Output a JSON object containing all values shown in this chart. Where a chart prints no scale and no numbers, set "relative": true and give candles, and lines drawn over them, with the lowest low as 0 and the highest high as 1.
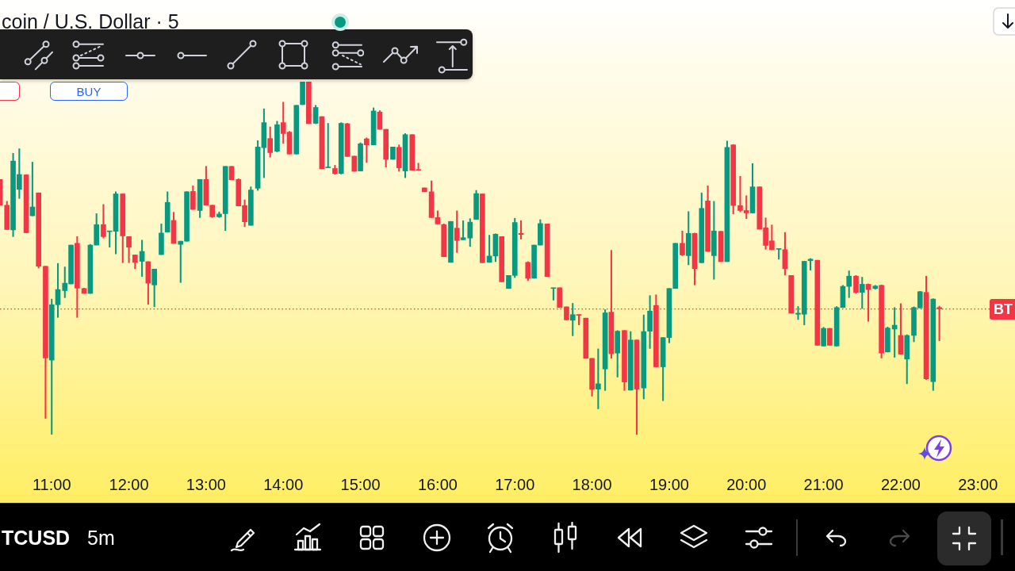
{
  "chart_data": {
    "type": "candlestick",
    "title": "coin / U.S. Dollar · 5",
    "relative": true,
    "annotations": [
      "BUY",
      "TCUSD",
      "5m"
    ],
    "xlim": [
      10.33,
      23.48
    ],
    "xticks": [
      {
        "value": 11,
        "label": "11:00"
      },
      {
        "value": 12,
        "label": "12:00"
      },
      {
        "value": 13,
        "label": "13:00"
      },
      {
        "value": 14,
        "label": "14:00"
      },
      {
        "value": 15,
        "label": "15:00"
      },
      {
        "value": 16,
        "label": "16:00"
      },
      {
        "value": 17,
        "label": "17:00"
      },
      {
        "value": 18,
        "label": "18:00"
      },
      {
        "value": 19,
        "label": "19:00"
      },
      {
        "value": 20,
        "label": "20:00"
      },
      {
        "value": 21,
        "label": "21:00"
      },
      {
        "value": 22,
        "label": "22:00"
      },
      {
        "value": 23,
        "label": "23:00"
      }
    ],
    "ref_lines": [
      {
        "axis": "y",
        "value": 0.356,
        "label": "BT",
        "color": "#f23645",
        "line_style": "dotted"
      }
    ],
    "x": [
      10.33,
      10.42,
      10.5,
      10.58,
      10.67,
      10.75,
      10.83,
      10.92,
      11,
      11.08,
      11.17,
      11.25,
      11.33,
      11.42,
      11.5,
      11.58,
      11.67,
      11.75,
      11.83,
      11.92,
      12,
      12.08,
      12.17,
      12.25,
      12.33,
      12.42,
      12.5,
      12.58,
      12.67,
      12.75,
      12.83,
      12.92,
      13,
      13.08,
      13.17,
      13.25,
      13.33,
      13.42,
      13.5,
      13.58,
      13.67,
      13.75,
      13.83,
      13.92,
      14,
      14.08,
      14.17,
      14.25,
      14.33,
      14.42,
      14.5,
      14.58,
      14.67,
      14.75,
      14.83,
      14.92,
      15,
      15.08,
      15.17,
      15.25,
      15.33,
      15.42,
      15.5,
      15.58,
      15.67,
      15.75,
      15.83,
      15.92,
      16,
      16.08,
      16.17,
      16.25,
      16.33,
      16.42,
      16.5,
      16.58,
      16.67,
      16.75,
      16.83,
      16.92,
      17,
      17.08,
      17.17,
      17.25,
      17.33,
      17.42,
      17.5,
      17.58,
      17.67,
      17.75,
      17.83,
      17.92,
      18,
      18.08,
      18.17,
      18.25,
      18.33,
      18.42,
      18.5,
      18.58,
      18.67,
      18.75,
      18.83,
      18.92,
      19,
      19.08,
      19.17,
      19.25,
      19.33,
      19.42,
      19.5,
      19.58,
      19.67,
      19.75,
      19.83,
      19.92,
      20,
      20.08,
      20.17,
      20.25,
      20.33,
      20.42,
      20.5,
      20.58,
      20.67,
      20.75,
      20.83,
      20.92,
      21,
      21.08,
      21.17,
      21.25,
      21.33,
      21.42,
      21.5,
      21.58,
      21.67,
      21.75,
      21.83,
      21.92,
      22,
      22.08,
      22.17,
      22.25,
      22.33,
      22.42,
      22.5
    ],
    "ohlc": [
      [
        0.723,
        0.723,
        0.65,
        0.65
      ],
      [
        0.65,
        0.661,
        0.581,
        0.581
      ],
      [
        0.58,
        0.797,
        0.561,
        0.775
      ],
      [
        0.695,
        0.81,
        0.669,
        0.737
      ],
      [
        0.736,
        0.736,
        0.572,
        0.572
      ],
      [
        0.62,
        0.772,
        0.62,
        0.645
      ],
      [
        0.685,
        0.685,
        0.472,
        0.477
      ],
      [
        0.477,
        0.477,
        0.046,
        0.217
      ],
      [
        0.211,
        0.384,
        0,
        0.368
      ],
      [
        0.368,
        0.485,
        0.332,
        0.411
      ],
      [
        0.408,
        0.475,
        0.388,
        0.429
      ],
      [
        0.427,
        0.537,
        0.427,
        0.537
      ],
      [
        0.542,
        0.561,
        0.332,
        0.415
      ],
      [
        0.414,
        0.415,
        0.4,
        0.4
      ],
      [
        0.4,
        0.539,
        0.4,
        0.537
      ],
      [
        0.537,
        0.626,
        0.537,
        0.595
      ],
      [
        0.595,
        0.652,
        0.557,
        0.561
      ],
      [
        0.575,
        0.577,
        0.531,
        0.577
      ],
      [
        0.576,
        0.688,
        0.512,
        0.682
      ],
      [
        0.682,
        0.682,
        0.487,
        0.563
      ],
      [
        0.561,
        0.561,
        0.487,
        0.531
      ],
      [
        0.509,
        0.509,
        0.47,
        0.488
      ],
      [
        0.491,
        0.551,
        0.448,
        0.519
      ],
      [
        0.49,
        0.49,
        0.369,
        0.429
      ],
      [
        0.424,
        0.469,
        0.362,
        0.469
      ],
      [
        0.51,
        0.597,
        0.51,
        0.571
      ],
      [
        0.574,
        0.688,
        0.574,
        0.658
      ],
      [
        0.607,
        0.63,
        0.542,
        0.542
      ],
      [
        0.539,
        0.548,
        0.431,
        0.548
      ],
      [
        0.548,
        0.689,
        0.548,
        0.688
      ],
      [
        0.689,
        0.705,
        0.638,
        0.638
      ],
      [
        0.635,
        0.723,
        0.615,
        0.723
      ],
      [
        0.723,
        0.76,
        0.65,
        0.65
      ],
      [
        0.65,
        0.65,
        0.615,
        0.617
      ],
      [
        0.617,
        0.631,
        0.615,
        0.625
      ],
      [
        0.626,
        0.76,
        0.578,
        0.76
      ],
      [
        0.76,
        0.76,
        0.722,
        0.722
      ],
      [
        0.723,
        0.725,
        0.648,
        0.648
      ],
      [
        0.649,
        0.665,
        0.589,
        0.603
      ],
      [
        0.593,
        0.702,
        0.593,
        0.693
      ],
      [
        0.698,
        0.833,
        0.692,
        0.815
      ],
      [
        0.813,
        0.923,
        0.728,
        0.884
      ],
      [
        0.839,
        0.872,
        0.786,
        0.799
      ],
      [
        0.803,
        0.888,
        0.801,
        0.878
      ],
      [
        0.884,
        0.942,
        0.825,
        0.853
      ],
      [
        0.857,
        0.859,
        0.795,
        0.795
      ],
      [
        0.795,
        0.933,
        0.795,
        0.933
      ],
      [
        0.935,
        1,
        0.935,
        1
      ],
      [
        1,
        1,
        0.881,
        0.881
      ],
      [
        0.882,
        0.933,
        0.881,
        0.927
      ],
      [
        0.901,
        0.901,
        0.753,
        0.753
      ],
      [
        0.756,
        0.882,
        0.756,
        0.757
      ],
      [
        0.754,
        0.763,
        0.737,
        0.74
      ],
      [
        0.74,
        0.884,
        0.738,
        0.882
      ],
      [
        0.881,
        0.882,
        0.788,
        0.788
      ],
      [
        0.789,
        0.789,
        0.746,
        0.746
      ],
      [
        0.747,
        0.827,
        0.747,
        0.824
      ],
      [
        0.838,
        0.841,
        0.771,
        0.821
      ],
      [
        0.821,
        0.926,
        0.821,
        0.917
      ],
      [
        0.914,
        0.918,
        0.865,
        0.865
      ],
      [
        0.865,
        0.865,
        0.758,
        0.78
      ],
      [
        0.78,
        0.815,
        0.78,
        0.815
      ],
      [
        0.814,
        0.821,
        0.746,
        0.756
      ],
      [
        0.747,
        0.853,
        0.728,
        0.85
      ],
      [
        0.85,
        0.85,
        0.749,
        0.749
      ],
      [
        0.75,
        0.769,
        0.749,
        0.749
      ],
      [
        0.699,
        0.699,
        0.688,
        0.688
      ],
      [
        0.688,
        0.719,
        0.615,
        0.615
      ],
      [
        0.615,
        0.634,
        0.597,
        0.597
      ],
      [
        0.595,
        0.597,
        0.504,
        0.504
      ],
      [
        0.488,
        0.604,
        0.488,
        0.604
      ],
      [
        0.585,
        0.634,
        0.516,
        0.55
      ],
      [
        0.552,
        0.606,
        0.552,
        0.558
      ],
      [
        0.557,
        0.612,
        0.533,
        0.602
      ],
      [
        0.61,
        0.692,
        0.61,
        0.683
      ],
      [
        0.682,
        0.682,
        0.487,
        0.487
      ],
      [
        0.488,
        0.565,
        0.488,
        0.506
      ],
      [
        0.506,
        0.569,
        0.49,
        0.568
      ],
      [
        0.561,
        0.561,
        0.433,
        0.433
      ],
      [
        0.414,
        0.451,
        0.414,
        0.451
      ],
      [
        0.451,
        0.613,
        0.445,
        0.601
      ],
      [
        0.57,
        0.606,
        0.554,
        0.567
      ],
      [
        0.488,
        0.49,
        0.436,
        0.443
      ],
      [
        0.443,
        0.537,
        0.443,
        0.537
      ],
      [
        0.537,
        0.609,
        0.537,
        0.598
      ],
      [
        0.597,
        0.597,
        0.448,
        0.448
      ],
      [
        0.414,
        0.415,
        0.381,
        0.415
      ],
      [
        0.416,
        0.416,
        0.36,
        0.36
      ],
      [
        0.362,
        0.362,
        0.325,
        0.325
      ],
      [
        0.324,
        0.372,
        0.28,
        0.34
      ],
      [
        0.34,
        0.34,
        0.311,
        0.338
      ],
      [
        0.33,
        0.33,
        0.216,
        0.216
      ],
      [
        0.216,
        0.216,
        0.109,
        0.128
      ],
      [
        0.129,
        0.243,
        0.073,
        0.144
      ],
      [
        0.186,
        0.354,
        0.125,
        0.345
      ],
      [
        0.347,
        0.522,
        0.216,
        0.229
      ],
      [
        0.231,
        0.295,
        0.163,
        0.293
      ],
      [
        0.295,
        0.295,
        0.125,
        0.149
      ],
      [
        0.126,
        0.292,
        0.126,
        0.268
      ],
      [
        0.268,
        0.268,
        0,
        0.129
      ],
      [
        0.132,
        0.339,
        0.101,
        0.292
      ],
      [
        0.293,
        0.394,
        0.244,
        0.35
      ],
      [
        0.366,
        0.396,
        0.192,
        0.192
      ],
      [
        0.192,
        0.275,
        0.096,
        0.275
      ],
      [
        0.275,
        0.414,
        0.26,
        0.414
      ],
      [
        0.414,
        0.542,
        0.414,
        0.542
      ],
      [
        0.542,
        0.577,
        0.507,
        0.509
      ],
      [
        0.507,
        0.632,
        0.481,
        0.57
      ],
      [
        0.57,
        0.571,
        0.424,
        0.47
      ],
      [
        0.487,
        0.685,
        0.487,
        0.641
      ],
      [
        0.662,
        0.705,
        0.519,
        0.519
      ],
      [
        0.507,
        0.661,
        0.44,
        0.577
      ],
      [
        0.576,
        0.576,
        0.49,
        0.49
      ],
      [
        0.49,
        0.832,
        0.49,
        0.814
      ],
      [
        0.821,
        0.821,
        0.625,
        0.649
      ],
      [
        0.649,
        0.732,
        0.631,
        0.635
      ],
      [
        0.635,
        0.677,
        0.612,
        0.628
      ],
      [
        0.628,
        0.768,
        0.628,
        0.702
      ],
      [
        0.702,
        0.702,
        0.582,
        0.582
      ],
      [
        0.586,
        0.614,
        0.525,
        0.536
      ],
      [
        0.549,
        0.594,
        0.524,
        0.524
      ],
      [
        0.525,
        0.527,
        0.497,
        0.527
      ],
      [
        0.524,
        0.573,
        0.452,
        0.47
      ],
      [
        0.451,
        0.451,
        0.344,
        0.344
      ],
      [
        0.341,
        0.363,
        0.326,
        0.344
      ],
      [
        0.341,
        0.491,
        0.311,
        0.491
      ],
      [
        0.493,
        0.499,
        0.466,
        0.497
      ],
      [
        0.494,
        0.494,
        0.253,
        0.253
      ],
      [
        0.251,
        0.304,
        0.251,
        0.301
      ],
      [
        0.301,
        0.301,
        0.253,
        0.253
      ],
      [
        0.251,
        0.363,
        0.251,
        0.36
      ],
      [
        0.36,
        0.423,
        0.36,
        0.42
      ],
      [
        0.42,
        0.464,
        0.388,
        0.449
      ],
      [
        0.449,
        0.451,
        0.4,
        0.403
      ],
      [
        0.403,
        0.446,
        0.357,
        0.426
      ],
      [
        0.426,
        0.427,
        0.321,
        0.411
      ],
      [
        0.414,
        0.423,
        0.412,
        0.421
      ],
      [
        0.423,
        0.424,
        0.217,
        0.231
      ],
      [
        0.234,
        0.305,
        0.234,
        0.302
      ],
      [
        0.299,
        0.36,
        0.219,
        0.31
      ],
      [
        0.281,
        0.371,
        0.228,
        0.228
      ],
      [
        0.214,
        0.283,
        0.144,
        0.281
      ],
      [
        0.281,
        0.362,
        0.263,
        0.36
      ],
      [
        0.359,
        0.406,
        0.359,
        0.405
      ],
      [
        0.403,
        0.449,
        0.156,
        0.158
      ],
      [
        0.15,
        0.385,
        0.125,
        0.384
      ],
      [
        0.36,
        0.364,
        0.266,
        0.356
      ]
    ],
    "colors": [
      "#f23645",
      "#f23645",
      "#089981",
      "#089981",
      "#f23645",
      "#089981",
      "#f23645",
      "#f23645",
      "#089981",
      "#089981",
      "#089981",
      "#089981",
      "#f23645",
      "#f23645",
      "#089981",
      "#089981",
      "#f23645",
      "#089981",
      "#089981",
      "#f23645",
      "#f23645",
      "#f23645",
      "#089981",
      "#f23645",
      "#089981",
      "#089981",
      "#089981",
      "#f23645",
      "#089981",
      "#089981",
      "#f23645",
      "#089981",
      "#f23645",
      "#f23645",
      "#089981",
      "#089981",
      "#f23645",
      "#f23645",
      "#f23645",
      "#089981",
      "#089981",
      "#089981",
      "#f23645",
      "#089981",
      "#f23645",
      "#f23645",
      "#089981",
      "#089981",
      "#f23645",
      "#089981",
      "#f23645",
      "#089981",
      "#f23645",
      "#089981",
      "#f23645",
      "#f23645",
      "#089981",
      "#f23645",
      "#089981",
      "#f23645",
      "#f23645",
      "#089981",
      "#f23645",
      "#089981",
      "#f23645",
      "#f23645",
      "#f23645",
      "#f23645",
      "#f23645",
      "#f23645",
      "#089981",
      "#f23645",
      "#089981",
      "#089981",
      "#089981",
      "#f23645",
      "#089981",
      "#089981",
      "#f23645",
      "#089981",
      "#089981",
      "#f23645",
      "#f23645",
      "#089981",
      "#089981",
      "#f23645",
      "#089981",
      "#f23645",
      "#f23645",
      "#089981",
      "#f23645",
      "#f23645",
      "#f23645",
      "#089981",
      "#089981",
      "#f23645",
      "#089981",
      "#f23645",
      "#089981",
      "#f23645",
      "#089981",
      "#089981",
      "#f23645",
      "#089981",
      "#089981",
      "#089981",
      "#f23645",
      "#089981",
      "#f23645",
      "#089981",
      "#f23645",
      "#089981",
      "#f23645",
      "#089981",
      "#f23645",
      "#f23645",
      "#f23645",
      "#089981",
      "#f23645",
      "#f23645",
      "#f23645",
      "#089981",
      "#f23645",
      "#f23645",
      "#089981",
      "#089981",
      "#089981",
      "#f23645",
      "#089981",
      "#f23645",
      "#089981",
      "#089981",
      "#089981",
      "#f23645",
      "#089981",
      "#f23645",
      "#089981",
      "#f23645",
      "#089981",
      "#089981",
      "#f23645",
      "#089981",
      "#089981",
      "#089981",
      "#f23645",
      "#089981",
      "#f23645"
    ]
  }
}
